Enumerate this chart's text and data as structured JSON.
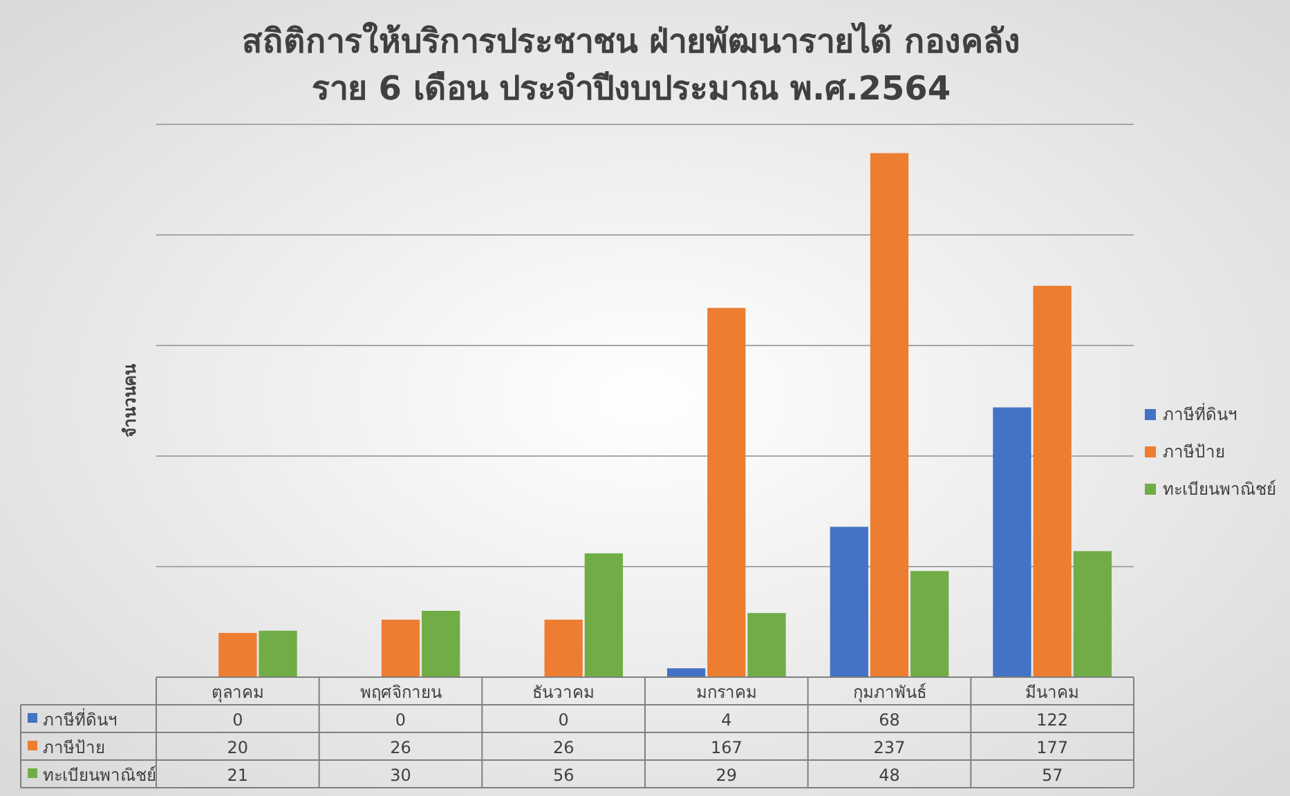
{
  "chart_data": {
    "type": "bar",
    "title": "สถิติการให้บริการประชาชน ฝ่ายพัฒนารายได้ กองคลัง\nราย 6 เดือน ประจำปีงบประมาณ พ.ศ.2564",
    "ylabel": "จำนวนคน",
    "categories": [
      "ตุลาคม",
      "พฤศจิกายน",
      "ธันวาคม",
      "มกราคม",
      "กุมภาพันธ์",
      "มีนาคม"
    ],
    "series": [
      {
        "name": "ภาษีที่ดินฯ",
        "color": "#4472c4",
        "values": [
          0,
          0,
          0,
          4,
          68,
          122
        ]
      },
      {
        "name": "ภาษีป้าย",
        "color": "#ed7d31",
        "values": [
          20,
          26,
          26,
          167,
          237,
          177
        ]
      },
      {
        "name": "ทะเบียนพาณิชย์",
        "color": "#70ad47",
        "values": [
          21,
          30,
          56,
          29,
          48,
          57
        ]
      }
    ],
    "ylim": [
      0,
      250
    ],
    "yticks": [
      {
        "value": 0,
        "label": null
      },
      {
        "value": 50,
        "label": null
      },
      {
        "value": 100,
        "label": null
      },
      {
        "value": 150,
        "label": null
      },
      {
        "value": 200,
        "label": null
      },
      {
        "value": 250,
        "label": null
      }
    ],
    "grid": "y",
    "legend": "right",
    "data_labels": true,
    "tick_labels": "x"
  }
}
